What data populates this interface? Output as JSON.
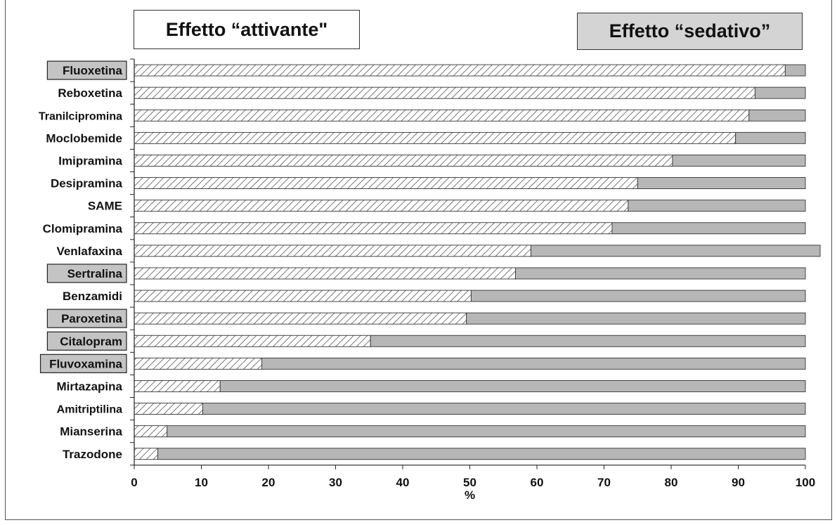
{
  "legend": {
    "activating_label": "Effetto “attivante\"",
    "sedative_label": "Effetto “sedativo”"
  },
  "colors": {
    "activating_fill": "#ffffff",
    "activating_hatch": "#555555",
    "sedative_fill": "#b7b7b7",
    "highlight_box": "#c4c4c4"
  },
  "chart_data": {
    "type": "bar",
    "orientation": "horizontal",
    "stacked": true,
    "xlabel": "%",
    "xlim": [
      0,
      100
    ],
    "x_ticks": [
      "0",
      "10",
      "20",
      "30",
      "40",
      "50",
      "60",
      "70",
      "80",
      "90",
      "100"
    ],
    "categories": [
      "Fluoxetina",
      "Reboxetina",
      "Tranilcipromina",
      "Moclobemide",
      "Imipramina",
      "Desipramina",
      "SAME",
      "Clomipramina",
      "Venlafaxina",
      "Sertralina",
      "Benzamidi",
      "Paroxetina",
      "Citalopram",
      "Fluvoxamina",
      "Mirtazapina",
      "Amitriptilina",
      "Mianserina",
      "Trazodone"
    ],
    "highlighted": [
      "Fluoxetina",
      "Sertralina",
      "Paroxetina",
      "Citalopram",
      "Fluvoxamina"
    ],
    "series": [
      {
        "name": "Effetto “attivante\"",
        "values": [
          97,
          92.5,
          91.6,
          89.6,
          80.2,
          75,
          73.6,
          71.2,
          59.1,
          56.8,
          50.2,
          49.5,
          35.2,
          19,
          12.8,
          10.2,
          4.9,
          3.5
        ]
      },
      {
        "name": "Effetto “sedativo”",
        "values": [
          3,
          7.5,
          8.4,
          10.4,
          19.8,
          25,
          26.4,
          28.8,
          43.1,
          43.2,
          49.8,
          50.5,
          64.8,
          81,
          87.2,
          89.8,
          95.1,
          96.5
        ]
      }
    ]
  }
}
